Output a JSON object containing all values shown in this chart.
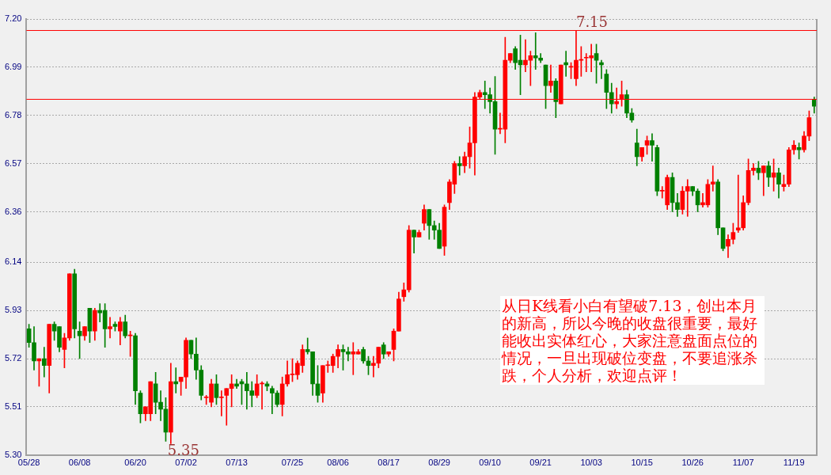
{
  "chart_data": {
    "type": "candlestick",
    "categories": [
      "05/28",
      null,
      null,
      null,
      null,
      null,
      null,
      null,
      null,
      null,
      "06/08",
      null,
      null,
      null,
      null,
      null,
      null,
      null,
      null,
      null,
      null,
      "06/20",
      null,
      null,
      null,
      null,
      null,
      null,
      null,
      null,
      null,
      "07/02",
      null,
      null,
      null,
      null,
      null,
      null,
      null,
      null,
      null,
      "07/13",
      null,
      null,
      null,
      null,
      null,
      null,
      null,
      null,
      null,
      null,
      "07/25",
      null,
      null,
      null,
      null,
      null,
      null,
      null,
      null,
      "08/06",
      null,
      null,
      null,
      null,
      null,
      null,
      null,
      null,
      null,
      "08/17",
      null,
      null,
      null,
      null,
      null,
      null,
      null,
      null,
      null,
      "08/29",
      null,
      null,
      null,
      null,
      null,
      null,
      null,
      null,
      null,
      "09/10",
      null,
      null,
      null,
      null,
      null,
      null,
      null,
      null,
      null,
      "09/21",
      null,
      null,
      null,
      null,
      null,
      null,
      null,
      null,
      null,
      "10/03",
      null,
      null,
      null,
      null,
      null,
      null,
      null,
      null,
      null,
      "10/15",
      null,
      null,
      null,
      null,
      null,
      null,
      null,
      null,
      null,
      "10/26",
      null,
      null,
      null,
      null,
      null,
      null,
      null,
      null,
      null,
      "11/07",
      null,
      null,
      null,
      null,
      null,
      null,
      null,
      null,
      null,
      "11/19",
      null,
      null,
      null,
      null
    ],
    "ohlc": [
      [
        5.85,
        5.87,
        5.77,
        5.79
      ],
      [
        5.79,
        5.86,
        5.67,
        5.71
      ],
      [
        5.71,
        5.72,
        5.6,
        5.72
      ],
      [
        5.72,
        5.77,
        5.64,
        5.69
      ],
      [
        5.69,
        5.87,
        5.57,
        5.87
      ],
      [
        5.87,
        5.88,
        5.8,
        5.84
      ],
      [
        5.86,
        5.86,
        5.75,
        5.77
      ],
      [
        5.76,
        5.83,
        5.68,
        5.81
      ],
      [
        5.81,
        6.09,
        5.8,
        6.09
      ],
      [
        6.09,
        6.11,
        5.81,
        5.85
      ],
      [
        5.84,
        5.88,
        5.72,
        5.82
      ],
      [
        5.82,
        5.86,
        5.8,
        5.86
      ],
      [
        5.94,
        5.94,
        5.79,
        5.84
      ],
      [
        5.84,
        5.94,
        5.8,
        5.93
      ],
      [
        5.93,
        5.96,
        5.88,
        5.92
      ],
      [
        5.93,
        5.96,
        5.77,
        5.85
      ],
      [
        5.85,
        5.9,
        5.81,
        5.86
      ],
      [
        5.87,
        5.88,
        5.84,
        5.86
      ],
      [
        5.84,
        5.9,
        5.78,
        5.88
      ],
      [
        5.88,
        5.91,
        5.81,
        5.82
      ],
      [
        5.82,
        5.84,
        5.73,
        5.82
      ],
      [
        5.82,
        5.83,
        5.52,
        5.58
      ],
      [
        5.57,
        5.58,
        5.44,
        5.48
      ],
      [
        5.48,
        5.51,
        5.45,
        5.51
      ],
      [
        5.48,
        5.62,
        5.45,
        5.62
      ],
      [
        5.61,
        5.66,
        5.48,
        5.53
      ],
      [
        5.53,
        5.58,
        5.45,
        5.5
      ],
      [
        5.5,
        5.55,
        5.36,
        5.4
      ],
      [
        5.4,
        5.7,
        5.35,
        5.62
      ],
      [
        5.62,
        5.68,
        5.57,
        5.61
      ],
      [
        5.62,
        5.64,
        5.56,
        5.64
      ],
      [
        5.64,
        5.81,
        5.59,
        5.8
      ],
      [
        5.8,
        5.8,
        5.72,
        5.74
      ],
      [
        5.74,
        5.81,
        5.63,
        5.67
      ],
      [
        5.67,
        5.69,
        5.54,
        5.56
      ],
      [
        5.55,
        5.56,
        5.52,
        5.55
      ],
      [
        5.53,
        5.63,
        5.51,
        5.61
      ],
      [
        5.61,
        5.65,
        5.52,
        5.55
      ],
      [
        5.55,
        5.58,
        5.47,
        5.55
      ],
      [
        5.56,
        5.59,
        5.43,
        5.59
      ],
      [
        5.59,
        5.65,
        5.51,
        5.61
      ],
      [
        5.61,
        5.63,
        5.59,
        5.6
      ],
      [
        5.62,
        5.63,
        5.52,
        5.61
      ],
      [
        5.61,
        5.66,
        5.5,
        5.58
      ],
      [
        5.58,
        5.62,
        5.51,
        5.56
      ],
      [
        5.56,
        5.65,
        5.55,
        5.61
      ],
      [
        5.61,
        5.62,
        5.5,
        5.61
      ],
      [
        5.61,
        5.62,
        5.58,
        5.6
      ],
      [
        5.59,
        5.6,
        5.48,
        5.57
      ],
      [
        5.57,
        5.58,
        5.51,
        5.52
      ],
      [
        5.52,
        5.64,
        5.47,
        5.61
      ],
      [
        5.61,
        5.71,
        5.6,
        5.65
      ],
      [
        5.65,
        5.72,
        5.62,
        5.65
      ],
      [
        5.65,
        5.71,
        5.63,
        5.7
      ],
      [
        5.69,
        5.78,
        5.66,
        5.76
      ],
      [
        5.76,
        5.81,
        5.74,
        5.75
      ],
      [
        5.75,
        5.75,
        5.56,
        5.61
      ],
      [
        5.61,
        5.69,
        5.53,
        5.56
      ],
      [
        5.57,
        5.69,
        5.53,
        5.69
      ],
      [
        5.69,
        5.71,
        5.66,
        5.69
      ],
      [
        5.69,
        5.74,
        5.66,
        5.73
      ],
      [
        5.73,
        5.78,
        5.68,
        5.76
      ],
      [
        5.76,
        5.78,
        5.67,
        5.75
      ],
      [
        5.75,
        5.77,
        5.71,
        5.74
      ],
      [
        5.74,
        5.79,
        5.65,
        5.75
      ],
      [
        5.74,
        5.76,
        5.74,
        5.75
      ],
      [
        5.76,
        5.77,
        5.7,
        5.71
      ],
      [
        5.71,
        5.73,
        5.65,
        5.69
      ],
      [
        5.69,
        5.73,
        5.64,
        5.7
      ],
      [
        5.7,
        5.77,
        5.68,
        5.77
      ],
      [
        5.78,
        5.79,
        5.72,
        5.74
      ],
      [
        5.74,
        5.75,
        5.73,
        5.75
      ],
      [
        5.76,
        5.85,
        5.71,
        5.84
      ],
      [
        5.84,
        6.01,
        5.84,
        5.98
      ],
      [
        5.99,
        6.05,
        5.97,
        6.02
      ],
      [
        6.02,
        6.3,
        6.01,
        6.28
      ],
      [
        6.28,
        6.28,
        6.18,
        6.25
      ],
      [
        6.25,
        6.28,
        6.25,
        6.27
      ],
      [
        6.31,
        6.39,
        6.28,
        6.37
      ],
      [
        6.37,
        6.37,
        6.24,
        6.3
      ],
      [
        6.3,
        6.32,
        6.24,
        6.28
      ],
      [
        6.28,
        6.31,
        6.2,
        6.2
      ],
      [
        6.21,
        6.39,
        6.17,
        6.38
      ],
      [
        6.4,
        6.5,
        6.37,
        6.49
      ],
      [
        6.48,
        6.58,
        6.44,
        6.57
      ],
      [
        6.57,
        6.6,
        6.52,
        6.56
      ],
      [
        6.56,
        6.62,
        6.53,
        6.6
      ],
      [
        6.6,
        6.73,
        6.55,
        6.66
      ],
      [
        6.66,
        6.88,
        6.52,
        6.86
      ],
      [
        6.86,
        6.89,
        6.85,
        6.88
      ],
      [
        6.88,
        6.93,
        6.81,
        6.87
      ],
      [
        6.87,
        6.9,
        6.79,
        6.84
      ],
      [
        6.84,
        6.95,
        6.61,
        6.72
      ],
      [
        6.72,
        6.79,
        6.7,
        6.72
      ],
      [
        6.72,
        7.12,
        6.66,
        7.02
      ],
      [
        7.02,
        7.05,
        7.01,
        7.05
      ],
      [
        7.07,
        7.08,
        6.98,
        7.01
      ],
      [
        7.02,
        7.13,
        6.87,
        7.0
      ],
      [
        7.0,
        7.11,
        6.97,
        7.02
      ],
      [
        7.02,
        7.06,
        6.91,
        7.04
      ],
      [
        7.04,
        7.14,
        6.98,
        7.03
      ],
      [
        7.03,
        7.05,
        7.01,
        7.02
      ],
      [
        7.0,
        7.0,
        6.81,
        6.91
      ],
      [
        6.91,
        7.0,
        6.88,
        6.93
      ],
      [
        6.93,
        6.94,
        6.77,
        6.84
      ],
      [
        6.83,
        7.0,
        6.83,
        7.0
      ],
      [
        7.01,
        7.06,
        6.95,
        7.0
      ],
      [
        6.99,
        7.01,
        6.94,
        6.99
      ],
      [
        6.94,
        7.15,
        6.91,
        7.02
      ],
      [
        7.02,
        7.08,
        6.95,
        7.02
      ],
      [
        7.03,
        7.05,
        6.97,
        7.03
      ],
      [
        7.03,
        7.09,
        6.97,
        7.04
      ],
      [
        7.05,
        7.09,
        6.92,
        7.02
      ],
      [
        7.01,
        7.02,
        6.94,
        7.0
      ],
      [
        6.96,
        6.98,
        6.81,
        6.88
      ],
      [
        6.88,
        6.92,
        6.79,
        6.83
      ],
      [
        6.83,
        6.9,
        6.81,
        6.84
      ],
      [
        6.85,
        6.93,
        6.82,
        6.87
      ],
      [
        6.87,
        6.89,
        6.77,
        6.79
      ],
      [
        6.79,
        6.81,
        6.75,
        6.76
      ],
      [
        6.66,
        6.72,
        6.56,
        6.6
      ],
      [
        6.6,
        6.64,
        6.58,
        6.64
      ],
      [
        6.65,
        6.69,
        6.61,
        6.67
      ],
      [
        6.67,
        6.7,
        6.58,
        6.65
      ],
      [
        6.64,
        6.65,
        6.43,
        6.45
      ],
      [
        6.45,
        6.47,
        6.42,
        6.45
      ],
      [
        6.39,
        6.52,
        6.37,
        6.51
      ],
      [
        6.51,
        6.53,
        6.36,
        6.4
      ],
      [
        6.4,
        6.44,
        6.34,
        6.37
      ],
      [
        6.37,
        6.47,
        6.35,
        6.45
      ],
      [
        6.45,
        6.5,
        6.34,
        6.47
      ],
      [
        6.47,
        6.47,
        6.43,
        6.45
      ],
      [
        6.45,
        6.46,
        6.36,
        6.39
      ],
      [
        6.39,
        6.44,
        6.38,
        6.4
      ],
      [
        6.39,
        6.5,
        6.38,
        6.48
      ],
      [
        6.48,
        6.56,
        6.45,
        6.49
      ],
      [
        6.49,
        6.5,
        6.26,
        6.29
      ],
      [
        6.29,
        6.29,
        6.19,
        6.2
      ],
      [
        6.21,
        6.26,
        6.16,
        6.24
      ],
      [
        6.24,
        6.31,
        6.22,
        6.27
      ],
      [
        6.28,
        6.52,
        6.27,
        6.29
      ],
      [
        6.29,
        6.43,
        6.28,
        6.4
      ],
      [
        6.4,
        6.59,
        6.39,
        6.54
      ],
      [
        6.54,
        6.57,
        6.52,
        6.55
      ],
      [
        6.55,
        6.58,
        6.5,
        6.53
      ],
      [
        6.53,
        6.56,
        6.43,
        6.56
      ],
      [
        6.56,
        6.58,
        6.47,
        6.51
      ],
      [
        6.51,
        6.59,
        6.45,
        6.53
      ],
      [
        6.53,
        6.55,
        6.42,
        6.48
      ],
      [
        6.47,
        6.52,
        6.45,
        6.48
      ],
      [
        6.48,
        6.64,
        6.47,
        6.63
      ],
      [
        6.63,
        6.67,
        6.61,
        6.65
      ],
      [
        6.64,
        6.66,
        6.59,
        6.63
      ],
      [
        6.63,
        6.71,
        6.62,
        6.69
      ],
      [
        6.69,
        6.8,
        6.67,
        6.77
      ],
      [
        6.85,
        6.86,
        6.79,
        6.82
      ]
    ],
    "colors": [
      "#008000",
      "#008000",
      "#ff0000",
      "#008000",
      "#ff0000",
      "#008000",
      "#008000",
      "#ff0000",
      "#ff0000",
      "#008000",
      "#008000",
      "#ff0000",
      "#008000",
      "#ff0000",
      "#008000",
      "#008000",
      "#ff0000",
      "#008000",
      "#ff0000",
      "#008000",
      "#ff0000",
      "#008000",
      "#008000",
      "#ff0000",
      "#ff0000",
      "#008000",
      "#008000",
      "#008000",
      "#ff0000",
      "#008000",
      "#ff0000",
      "#ff0000",
      "#008000",
      "#008000",
      "#008000",
      "#ff0000",
      "#ff0000",
      "#008000",
      "#ff0000",
      "#ff0000",
      "#ff0000",
      "#008000",
      "#008000",
      "#008000",
      "#008000",
      "#ff0000",
      "#ff0000",
      "#008000",
      "#008000",
      "#008000",
      "#ff0000",
      "#ff0000",
      "#ff0000",
      "#ff0000",
      "#ff0000",
      "#008000",
      "#008000",
      "#008000",
      "#ff0000",
      "#ff0000",
      "#ff0000",
      "#ff0000",
      "#008000",
      "#008000",
      "#ff0000",
      "#ff0000",
      "#008000",
      "#008000",
      "#ff0000",
      "#ff0000",
      "#008000",
      "#ff0000",
      "#ff0000",
      "#ff0000",
      "#ff0000",
      "#ff0000",
      "#008000",
      "#ff0000",
      "#ff0000",
      "#008000",
      "#008000",
      "#008000",
      "#ff0000",
      "#ff0000",
      "#ff0000",
      "#008000",
      "#ff0000",
      "#ff0000",
      "#ff0000",
      "#ff0000",
      "#008000",
      "#008000",
      "#008000",
      "#ff0000",
      "#ff0000",
      "#ff0000",
      "#008000",
      "#008000",
      "#ff0000",
      "#ff0000",
      "#008000",
      "#008000",
      "#008000",
      "#ff0000",
      "#008000",
      "#ff0000",
      "#008000",
      "#ff0000",
      "#ff0000",
      "#ff0000",
      "#ff0000",
      "#ff0000",
      "#008000",
      "#008000",
      "#008000",
      "#008000",
      "#ff0000",
      "#ff0000",
      "#008000",
      "#008000",
      "#008000",
      "#ff0000",
      "#ff0000",
      "#008000",
      "#008000",
      "#ff0000",
      "#ff0000",
      "#008000",
      "#008000",
      "#ff0000",
      "#ff0000",
      "#008000",
      "#008000",
      "#ff0000",
      "#ff0000",
      "#ff0000",
      "#008000",
      "#008000",
      "#ff0000",
      "#ff0000",
      "#ff0000",
      "#ff0000",
      "#ff0000",
      "#ff0000",
      "#008000",
      "#ff0000",
      "#008000",
      "#ff0000",
      "#008000",
      "#ff0000",
      "#ff0000",
      "#ff0000",
      "#008000",
      "#ff0000",
      "#ff0000",
      "#008000"
    ],
    "ylim": [
      5.3,
      7.2
    ],
    "yticks": [
      {
        "value": 5.3,
        "label": "5.30"
      },
      5.51,
      5.72,
      5.93,
      6.14,
      6.36,
      6.57,
      6.78,
      6.99,
      {
        "value": 7.2,
        "label": "7.20"
      }
    ],
    "grid": "y",
    "ref_lines": [
      {
        "axis": "y",
        "value": 7.15,
        "label": "7.15",
        "color": "#ff0000"
      },
      {
        "axis": "y",
        "value": 6.85,
        "color": "#ff0000"
      }
    ],
    "annotations": [
      "5.35",
      "从日K线看小白有望破7.13，创出本月的新高，所以今晚的收盘很重要，最好能收出实体红心，大家注意盘面点位的情况，一旦出现破位变盘，不要追涨杀跌，个人分析，欢迎点评！"
    ]
  }
}
